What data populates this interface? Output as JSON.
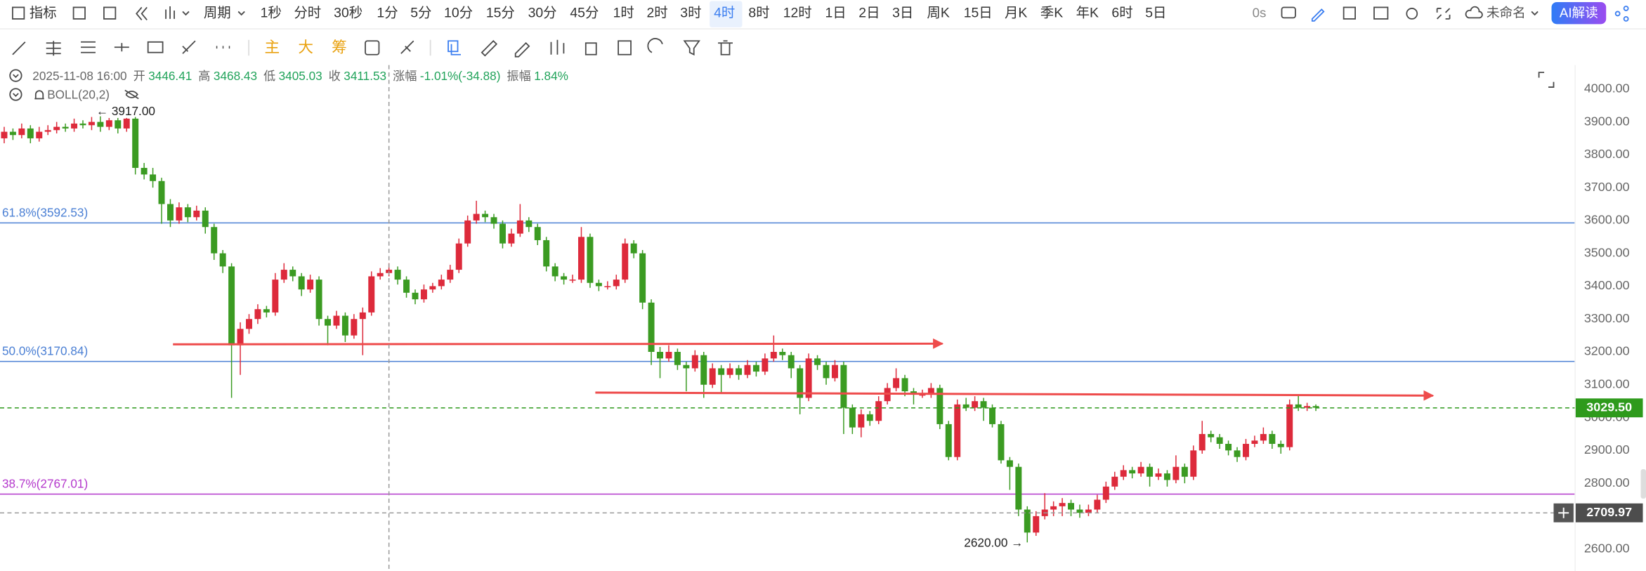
{
  "toolbar": {
    "indicator": "指标",
    "period": "周期",
    "periods": [
      "1秒",
      "分时",
      "30秒",
      "1分",
      "5分",
      "10分",
      "15分",
      "30分",
      "45分",
      "1时",
      "2时",
      "3时",
      "4时",
      "8时",
      "12时",
      "1日",
      "2日",
      "3日",
      "周K",
      "15日",
      "月K",
      "季K",
      "年K",
      "6时",
      "5日"
    ],
    "active_period_index": 12,
    "refresh": "0s",
    "layout_name": "未命名",
    "ai_button": "AI解读"
  },
  "drawing_toolbar": {
    "chips": [
      "主",
      "大",
      "筹"
    ]
  },
  "info": {
    "time": "2025-11-08 16:00",
    "fields": [
      {
        "name": "开",
        "value": "3446.41"
      },
      {
        "name": "高",
        "value": "3468.43"
      },
      {
        "name": "低",
        "value": "3405.03"
      },
      {
        "name": "收",
        "value": "3411.53"
      },
      {
        "name": "涨幅",
        "value": "-1.01%(-34.88)"
      },
      {
        "name": "振幅",
        "value": "1.84%"
      }
    ],
    "indicator": "BOLL(20,2)"
  },
  "chart_data": {
    "type": "candlestick",
    "up_color": "#dd2a3b",
    "down_color": "#3b9b22",
    "grid": false,
    "ylim": [
      2533,
      4073
    ],
    "yticks": [
      {
        "value": 2600,
        "label": "2600.00"
      },
      {
        "value": 2700,
        "label": "2700.00"
      },
      {
        "value": 2800,
        "label": "2800.00"
      },
      {
        "value": 2900,
        "label": "2900.00"
      },
      {
        "value": 3000,
        "label": "3000.00"
      },
      {
        "value": 3100,
        "label": "3100.00"
      },
      {
        "value": 3200,
        "label": "3200.00"
      },
      {
        "value": 3300,
        "label": "3300.00"
      },
      {
        "value": 3400,
        "label": "3400.00"
      },
      {
        "value": 3500,
        "label": "3500.00"
      },
      {
        "value": 3600,
        "label": "3600.00"
      },
      {
        "value": 3700,
        "label": "3700.00"
      },
      {
        "value": 3800,
        "label": "3800.00"
      },
      {
        "value": 3900,
        "label": "3900.00"
      },
      {
        "value": 4000,
        "label": "4000.00"
      }
    ],
    "ohlc": [
      [
        3850,
        3885,
        3835,
        3870
      ],
      [
        3870,
        3880,
        3845,
        3860
      ],
      [
        3860,
        3895,
        3850,
        3880
      ],
      [
        3880,
        3890,
        3835,
        3850
      ],
      [
        3850,
        3885,
        3840,
        3870
      ],
      [
        3870,
        3890,
        3860,
        3875
      ],
      [
        3875,
        3900,
        3865,
        3885
      ],
      [
        3885,
        3895,
        3870,
        3880
      ],
      [
        3880,
        3910,
        3870,
        3895
      ],
      [
        3895,
        3905,
        3880,
        3890
      ],
      [
        3890,
        3915,
        3875,
        3900
      ],
      [
        3900,
        3917,
        3870,
        3885
      ],
      [
        3885,
        3912,
        3875,
        3905
      ],
      [
        3905,
        3912,
        3865,
        3880
      ],
      [
        3880,
        3912,
        3870,
        3910
      ],
      [
        3910,
        3915,
        3740,
        3760
      ],
      [
        3760,
        3775,
        3725,
        3740
      ],
      [
        3740,
        3760,
        3700,
        3720
      ],
      [
        3720,
        3730,
        3590,
        3650
      ],
      [
        3650,
        3665,
        3580,
        3600
      ],
      [
        3600,
        3655,
        3590,
        3640
      ],
      [
        3640,
        3650,
        3595,
        3610
      ],
      [
        3610,
        3645,
        3600,
        3630
      ],
      [
        3630,
        3640,
        3560,
        3580
      ],
      [
        3580,
        3590,
        3480,
        3500
      ],
      [
        3500,
        3510,
        3440,
        3460
      ],
      [
        3460,
        3470,
        3060,
        3220
      ],
      [
        3220,
        3290,
        3130,
        3270
      ],
      [
        3270,
        3315,
        3255,
        3300
      ],
      [
        3300,
        3345,
        3285,
        3330
      ],
      [
        3330,
        3340,
        3305,
        3320
      ],
      [
        3320,
        3440,
        3310,
        3420
      ],
      [
        3420,
        3470,
        3410,
        3450
      ],
      [
        3450,
        3460,
        3415,
        3430
      ],
      [
        3430,
        3440,
        3370,
        3390
      ],
      [
        3390,
        3435,
        3380,
        3420
      ],
      [
        3420,
        3430,
        3280,
        3300
      ],
      [
        3300,
        3310,
        3220,
        3280
      ],
      [
        3280,
        3325,
        3270,
        3310
      ],
      [
        3310,
        3320,
        3230,
        3250
      ],
      [
        3250,
        3315,
        3240,
        3300
      ],
      [
        3300,
        3335,
        3190,
        3320
      ],
      [
        3320,
        3445,
        3310,
        3430
      ],
      [
        3430,
        3455,
        3420,
        3440
      ],
      [
        3440,
        3470,
        3430,
        3450
      ],
      [
        3450,
        3460,
        3405,
        3420
      ],
      [
        3420,
        3430,
        3365,
        3380
      ],
      [
        3380,
        3390,
        3345,
        3360
      ],
      [
        3360,
        3405,
        3350,
        3390
      ],
      [
        3390,
        3410,
        3380,
        3400
      ],
      [
        3400,
        3435,
        3390,
        3420
      ],
      [
        3420,
        3465,
        3410,
        3450
      ],
      [
        3450,
        3545,
        3440,
        3530
      ],
      [
        3530,
        3615,
        3520,
        3600
      ],
      [
        3600,
        3660,
        3590,
        3620
      ],
      [
        3620,
        3630,
        3595,
        3610
      ],
      [
        3610,
        3620,
        3575,
        3590
      ],
      [
        3590,
        3600,
        3515,
        3530
      ],
      [
        3530,
        3575,
        3520,
        3560
      ],
      [
        3560,
        3650,
        3550,
        3600
      ],
      [
        3600,
        3610,
        3565,
        3580
      ],
      [
        3580,
        3590,
        3525,
        3540
      ],
      [
        3540,
        3550,
        3445,
        3460
      ],
      [
        3460,
        3470,
        3415,
        3430
      ],
      [
        3430,
        3440,
        3405,
        3420
      ],
      [
        3420,
        3435,
        3410,
        3420
      ],
      [
        3420,
        3580,
        3410,
        3550
      ],
      [
        3550,
        3560,
        3395,
        3410
      ],
      [
        3410,
        3420,
        3385,
        3400
      ],
      [
        3400,
        3415,
        3390,
        3400
      ],
      [
        3400,
        3435,
        3390,
        3420
      ],
      [
        3420,
        3545,
        3410,
        3530
      ],
      [
        3530,
        3540,
        3485,
        3500
      ],
      [
        3500,
        3510,
        3330,
        3350
      ],
      [
        3350,
        3360,
        3160,
        3200
      ],
      [
        3200,
        3215,
        3120,
        3180
      ],
      [
        3180,
        3220,
        3170,
        3200
      ],
      [
        3200,
        3210,
        3145,
        3160
      ],
      [
        3160,
        3170,
        3080,
        3150
      ],
      [
        3150,
        3205,
        3140,
        3190
      ],
      [
        3190,
        3200,
        3060,
        3100
      ],
      [
        3100,
        3165,
        3090,
        3150
      ],
      [
        3150,
        3160,
        3075,
        3130
      ],
      [
        3130,
        3165,
        3120,
        3150
      ],
      [
        3150,
        3160,
        3115,
        3130
      ],
      [
        3130,
        3175,
        3120,
        3160
      ],
      [
        3160,
        3170,
        3125,
        3140
      ],
      [
        3140,
        3195,
        3130,
        3180
      ],
      [
        3180,
        3250,
        3170,
        3200
      ],
      [
        3200,
        3210,
        3175,
        3190
      ],
      [
        3190,
        3200,
        3120,
        3150
      ],
      [
        3150,
        3160,
        3010,
        3060
      ],
      [
        3060,
        3195,
        3050,
        3180
      ],
      [
        3180,
        3190,
        3145,
        3160
      ],
      [
        3160,
        3170,
        3100,
        3120
      ],
      [
        3120,
        3175,
        3110,
        3160
      ],
      [
        3160,
        3170,
        2950,
        3030
      ],
      [
        3030,
        3040,
        2950,
        2970
      ],
      [
        2970,
        3025,
        2940,
        3010
      ],
      [
        3010,
        3020,
        2975,
        2990
      ],
      [
        2990,
        3065,
        2980,
        3050
      ],
      [
        3050,
        3105,
        3040,
        3090
      ],
      [
        3090,
        3150,
        3080,
        3120
      ],
      [
        3120,
        3130,
        3065,
        3080
      ],
      [
        3080,
        3090,
        3040,
        3070
      ],
      [
        3070,
        3085,
        3060,
        3070
      ],
      [
        3070,
        3105,
        3060,
        3090
      ],
      [
        3090,
        3100,
        2965,
        2980
      ],
      [
        2980,
        2990,
        2870,
        2880
      ],
      [
        2880,
        3055,
        2870,
        3040
      ],
      [
        3040,
        3060,
        3020,
        3030
      ],
      [
        3030,
        3065,
        3020,
        3050
      ],
      [
        3050,
        3060,
        2990,
        3030
      ],
      [
        3030,
        3040,
        2970,
        2980
      ],
      [
        2980,
        2990,
        2860,
        2870
      ],
      [
        2870,
        2880,
        2780,
        2850
      ],
      [
        2850,
        2860,
        2700,
        2720
      ],
      [
        2720,
        2730,
        2620,
        2650
      ],
      [
        2650,
        2715,
        2640,
        2700
      ],
      [
        2700,
        2770,
        2690,
        2720
      ],
      [
        2720,
        2745,
        2700,
        2730
      ],
      [
        2730,
        2755,
        2700,
        2740
      ],
      [
        2740,
        2750,
        2700,
        2720
      ],
      [
        2720,
        2735,
        2695,
        2710
      ],
      [
        2710,
        2735,
        2700,
        2720
      ],
      [
        2720,
        2765,
        2710,
        2750
      ],
      [
        2750,
        2805,
        2740,
        2790
      ],
      [
        2790,
        2835,
        2780,
        2820
      ],
      [
        2820,
        2855,
        2810,
        2840
      ],
      [
        2840,
        2850,
        2815,
        2830
      ],
      [
        2830,
        2865,
        2820,
        2850
      ],
      [
        2850,
        2860,
        2790,
        2820
      ],
      [
        2820,
        2845,
        2810,
        2830
      ],
      [
        2830,
        2840,
        2790,
        2810
      ],
      [
        2810,
        2885,
        2800,
        2850
      ],
      [
        2850,
        2860,
        2800,
        2820
      ],
      [
        2820,
        2915,
        2810,
        2900
      ],
      [
        2900,
        2990,
        2890,
        2950
      ],
      [
        2950,
        2960,
        2925,
        2940
      ],
      [
        2940,
        2950,
        2905,
        2920
      ],
      [
        2920,
        2930,
        2885,
        2900
      ],
      [
        2900,
        2910,
        2865,
        2880
      ],
      [
        2880,
        2935,
        2870,
        2920
      ],
      [
        2920,
        2945,
        2910,
        2930
      ],
      [
        2930,
        2970,
        2920,
        2950
      ],
      [
        2950,
        2960,
        2905,
        2920
      ],
      [
        2920,
        2930,
        2890,
        2910
      ],
      [
        2910,
        3055,
        2900,
        3040
      ],
      [
        3040,
        3070,
        3020,
        3030
      ],
      [
        3030,
        3045,
        3020,
        3035
      ],
      [
        3035,
        3040,
        3020,
        3030
      ]
    ],
    "fib_levels": [
      {
        "label": "61.8%(3592.53)",
        "value": 3592.53,
        "color": "#4a7fd4"
      },
      {
        "label": "50.0%(3170.84)",
        "value": 3170.84,
        "color": "#4a7fd4"
      },
      {
        "label": "38.7%(2767.01)",
        "value": 2767.01,
        "color": "#b438cc"
      }
    ],
    "trend_arrows": [
      {
        "from_index": 19.3,
        "from_value": 3223,
        "to_index": 107.3,
        "to_value": 3225,
        "color": "#ee4b4b"
      },
      {
        "from_index": 67.6,
        "from_value": 3076,
        "to_index": 163.4,
        "to_value": 3067,
        "color": "#ee4b4b"
      }
    ],
    "extreme_labels": [
      {
        "text": "← 3917.00",
        "value": 3917,
        "index": 11
      },
      {
        "text": "2620.00 →",
        "value": 2620,
        "index": 117
      }
    ],
    "last_price": {
      "value": 3029.5,
      "label": "3029.50",
      "color": "#2e9a1c"
    },
    "crosshair": {
      "index": 44,
      "value": 2709.97,
      "label": "2709.97"
    }
  }
}
